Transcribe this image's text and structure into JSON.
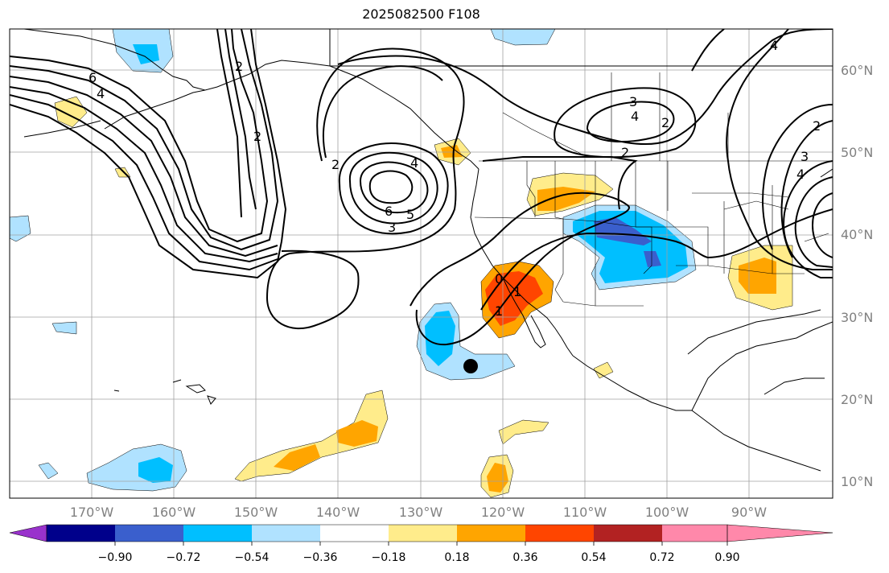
{
  "title": "2025082500 F108",
  "lat_labels": [
    "60°N",
    "50°N",
    "40°N",
    "30°N",
    "20°N",
    "10°N"
  ],
  "lon_labels": [
    "170°W",
    "160°W",
    "150°W",
    "140°W",
    "130°W",
    "120°W",
    "110°W",
    "100°W",
    "90°W"
  ],
  "colorbar": {
    "colors": [
      "#9932cc",
      "#00008b",
      "#3a5fcd",
      "#00bfff",
      "#b0e2ff",
      "#ffffff",
      "#ffec8b",
      "#ffa500",
      "#ff4500",
      "#b22222",
      "#ff88aa"
    ],
    "tick_labels": [
      "−0.90",
      "−0.72",
      "−0.54",
      "−0.36",
      "−0.18",
      "0.18",
      "0.36",
      "0.54",
      "0.72",
      "0.90"
    ]
  },
  "contour_labels": [
    "6",
    "4",
    "2",
    "2",
    "2",
    "4",
    "6",
    "5",
    "3",
    "3",
    "4",
    "2",
    "4",
    "2",
    "3",
    "4",
    "1",
    "0",
    "1",
    "2"
  ],
  "marker": "storm-position-marker"
}
